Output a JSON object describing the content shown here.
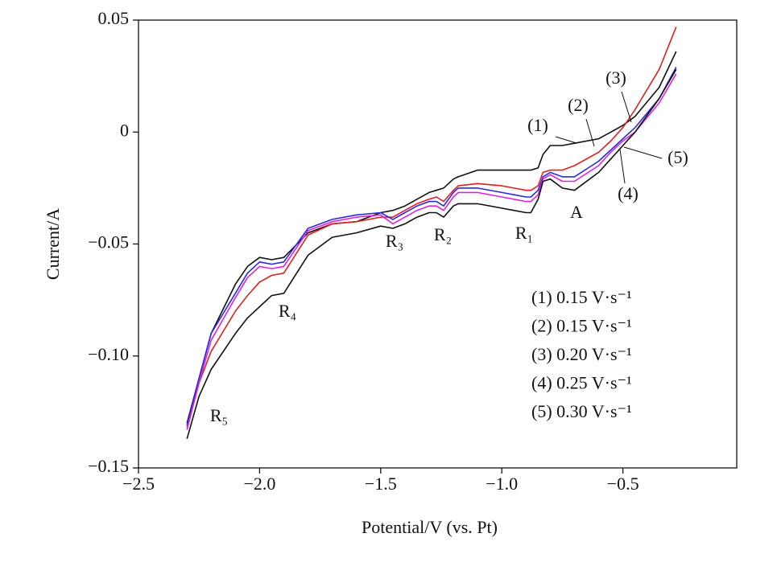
{
  "chart_data": {
    "type": "line",
    "xlabel": "Potential/V (vs. Pt)",
    "ylabel": "Current/A",
    "x": [
      -0.28,
      -0.35,
      -0.45,
      -0.5,
      -0.55,
      -0.6,
      -0.7,
      -0.75,
      -0.8,
      -0.83,
      -0.85,
      -0.88,
      -0.9,
      -0.95,
      -1.0,
      -1.1,
      -1.18,
      -1.2,
      -1.24,
      -1.27,
      -1.3,
      -1.35,
      -1.4,
      -1.45,
      -1.5,
      -1.6,
      -1.7,
      -1.8,
      -1.9,
      -1.95,
      -2.0,
      -2.05,
      -2.1,
      -2.2,
      -2.25,
      -2.3
    ],
    "series": [
      {
        "name": "(1) 0.15 V·s⁻¹",
        "color": "#111111",
        "values": [
          0.036,
          0.02,
          0.007,
          0.003,
          0.0,
          -0.003,
          -0.005,
          -0.006,
          -0.006,
          -0.01,
          -0.016,
          -0.017,
          -0.017,
          -0.017,
          -0.017,
          -0.017,
          -0.02,
          -0.021,
          -0.025,
          -0.026,
          -0.027,
          -0.03,
          -0.033,
          -0.035,
          -0.036,
          -0.04,
          -0.041,
          -0.045,
          -0.056,
          -0.057,
          -0.056,
          -0.06,
          -0.068,
          -0.09,
          -0.11,
          -0.13
        ]
      },
      {
        "name": "(2) 0.15 V·s⁻¹",
        "color": "#e02020",
        "values": [
          0.047,
          0.028,
          0.01,
          0.002,
          -0.004,
          -0.009,
          -0.015,
          -0.017,
          -0.017,
          -0.018,
          -0.024,
          -0.026,
          -0.026,
          -0.025,
          -0.024,
          -0.023,
          -0.024,
          -0.026,
          -0.031,
          -0.029,
          -0.03,
          -0.032,
          -0.035,
          -0.038,
          -0.038,
          -0.04,
          -0.041,
          -0.046,
          -0.063,
          -0.064,
          -0.067,
          -0.073,
          -0.08,
          -0.098,
          -0.112,
          -0.132
        ]
      },
      {
        "name": "(3) 0.20 V·s⁻¹",
        "color": "#2a2ae0",
        "values": [
          0.029,
          0.015,
          0.002,
          -0.003,
          -0.008,
          -0.013,
          -0.02,
          -0.02,
          -0.018,
          -0.02,
          -0.026,
          -0.029,
          -0.029,
          -0.028,
          -0.027,
          -0.025,
          -0.025,
          -0.027,
          -0.033,
          -0.031,
          -0.031,
          -0.033,
          -0.036,
          -0.039,
          -0.036,
          -0.037,
          -0.039,
          -0.043,
          -0.058,
          -0.059,
          -0.058,
          -0.063,
          -0.072,
          -0.09,
          -0.11,
          -0.131
        ]
      },
      {
        "name": "(4) 0.25 V·s⁻¹",
        "color": "#e020e0",
        "values": [
          0.026,
          0.013,
          0.0,
          -0.004,
          -0.009,
          -0.015,
          -0.022,
          -0.022,
          -0.019,
          -0.021,
          -0.028,
          -0.031,
          -0.031,
          -0.03,
          -0.029,
          -0.027,
          -0.027,
          -0.029,
          -0.035,
          -0.033,
          -0.033,
          -0.035,
          -0.038,
          -0.041,
          -0.037,
          -0.038,
          -0.04,
          -0.044,
          -0.06,
          -0.061,
          -0.06,
          -0.065,
          -0.074,
          -0.093,
          -0.112,
          -0.133
        ]
      },
      {
        "name": "(5) 0.30 V·s⁻¹",
        "color": "#111111",
        "values": [
          0.028,
          0.015,
          0.0,
          -0.006,
          -0.012,
          -0.018,
          -0.026,
          -0.025,
          -0.021,
          -0.022,
          -0.03,
          -0.036,
          -0.036,
          -0.035,
          -0.034,
          -0.032,
          -0.032,
          -0.033,
          -0.038,
          -0.036,
          -0.036,
          -0.038,
          -0.041,
          -0.043,
          -0.042,
          -0.045,
          -0.047,
          -0.055,
          -0.072,
          -0.073,
          -0.078,
          -0.083,
          -0.09,
          -0.106,
          -0.118,
          -0.137
        ]
      }
    ],
    "annotations": [
      "(1)",
      "(2)",
      "(3)",
      "(4)",
      "(5)",
      "A",
      "R₁",
      "R₂",
      "R₃",
      "R₄",
      "R₅"
    ],
    "xlim": [
      -2.5,
      -0.03
    ],
    "ylim": [
      -0.15,
      0.05
    ],
    "xticks": [
      {
        "value": -2.5,
        "label": "−2.5"
      },
      {
        "value": -2.0,
        "label": "−2.0"
      },
      {
        "value": -1.5,
        "label": "−1.5"
      },
      {
        "value": -1.0,
        "label": "−1.0"
      },
      {
        "value": -0.5,
        "label": "−0.5"
      }
    ],
    "yticks": [
      {
        "value": -0.15,
        "label": "−0.15"
      },
      {
        "value": -0.1,
        "label": "−0.10"
      },
      {
        "value": -0.05,
        "label": "−0.05"
      },
      0,
      0.05
    ]
  }
}
